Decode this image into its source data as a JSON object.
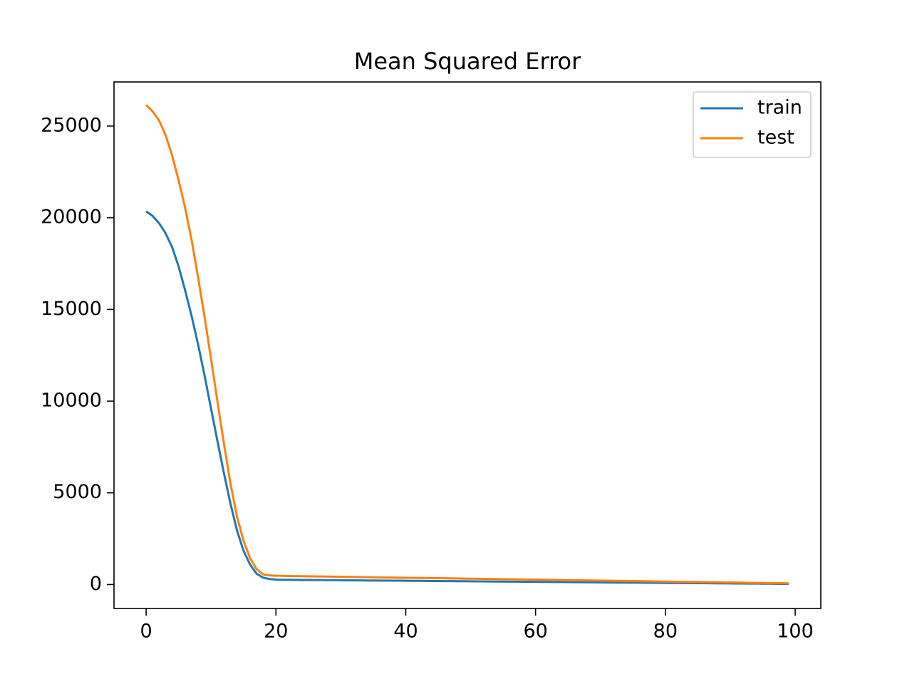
{
  "chart_data": {
    "type": "line",
    "title": "Mean Squared Error",
    "x": [
      0,
      1,
      2,
      3,
      4,
      5,
      6,
      7,
      8,
      9,
      10,
      11,
      12,
      13,
      14,
      15,
      16,
      17,
      18,
      19,
      20,
      21,
      22,
      23,
      24,
      25,
      26,
      27,
      28,
      29,
      30,
      31,
      32,
      33,
      34,
      35,
      36,
      37,
      38,
      39,
      40,
      41,
      42,
      43,
      44,
      45,
      46,
      47,
      48,
      49,
      50,
      51,
      52,
      53,
      54,
      55,
      56,
      57,
      58,
      59,
      60,
      61,
      62,
      63,
      64,
      65,
      66,
      67,
      68,
      69,
      70,
      71,
      72,
      73,
      74,
      75,
      76,
      77,
      78,
      79,
      80,
      81,
      82,
      83,
      84,
      85,
      86,
      87,
      88,
      89,
      90,
      91,
      92,
      93,
      94,
      95,
      96,
      97,
      98,
      99
    ],
    "series": [
      {
        "name": "train",
        "color": "#1f77b4",
        "values": [
          20350,
          20100,
          19700,
          19150,
          18400,
          17350,
          16050,
          14650,
          13100,
          11400,
          9600,
          7800,
          6050,
          4400,
          2950,
          1850,
          1100,
          600,
          380,
          300,
          270,
          260,
          257,
          254,
          251,
          248,
          246,
          243,
          240,
          237,
          234,
          231,
          228,
          225,
          222,
          219,
          217,
          214,
          211,
          208,
          205,
          202,
          199,
          196,
          193,
          190,
          188,
          185,
          182,
          179,
          176,
          173,
          170,
          167,
          164,
          161,
          159,
          156,
          153,
          150,
          147,
          144,
          141,
          138,
          135,
          132,
          130,
          127,
          124,
          121,
          118,
          115,
          112,
          109,
          106,
          103,
          101,
          98,
          95,
          92,
          89,
          86,
          83,
          80,
          77,
          74,
          72,
          69,
          66,
          63,
          60,
          57,
          54,
          51,
          48,
          45,
          43,
          40,
          37,
          34
        ]
      },
      {
        "name": "test",
        "color": "#ff7f0e",
        "values": [
          26150,
          25800,
          25300,
          24500,
          23400,
          22050,
          20550,
          18800,
          16750,
          14600,
          12300,
          9950,
          7650,
          5500,
          3700,
          2400,
          1450,
          850,
          560,
          500,
          480,
          470,
          465,
          460,
          454,
          449,
          444,
          439,
          434,
          428,
          423,
          418,
          413,
          408,
          402,
          397,
          392,
          387,
          382,
          376,
          371,
          366,
          361,
          356,
          350,
          345,
          340,
          335,
          330,
          324,
          319,
          314,
          309,
          304,
          298,
          293,
          288,
          283,
          278,
          272,
          267,
          262,
          257,
          252,
          246,
          241,
          236,
          231,
          226,
          220,
          215,
          210,
          205,
          200,
          194,
          189,
          184,
          179,
          174,
          168,
          163,
          158,
          153,
          148,
          142,
          137,
          132,
          127,
          122,
          116,
          111,
          106,
          101,
          96,
          90,
          85,
          80,
          75,
          70,
          64
        ]
      }
    ],
    "xlim": [
      -4.95,
      103.95
    ],
    "xticks": [
      0,
      20,
      40,
      60,
      80,
      100
    ],
    "ylim": [
      -1305,
      27405
    ],
    "yticks": [
      0,
      5000,
      10000,
      15000,
      20000,
      25000
    ],
    "legend": "upper right"
  }
}
